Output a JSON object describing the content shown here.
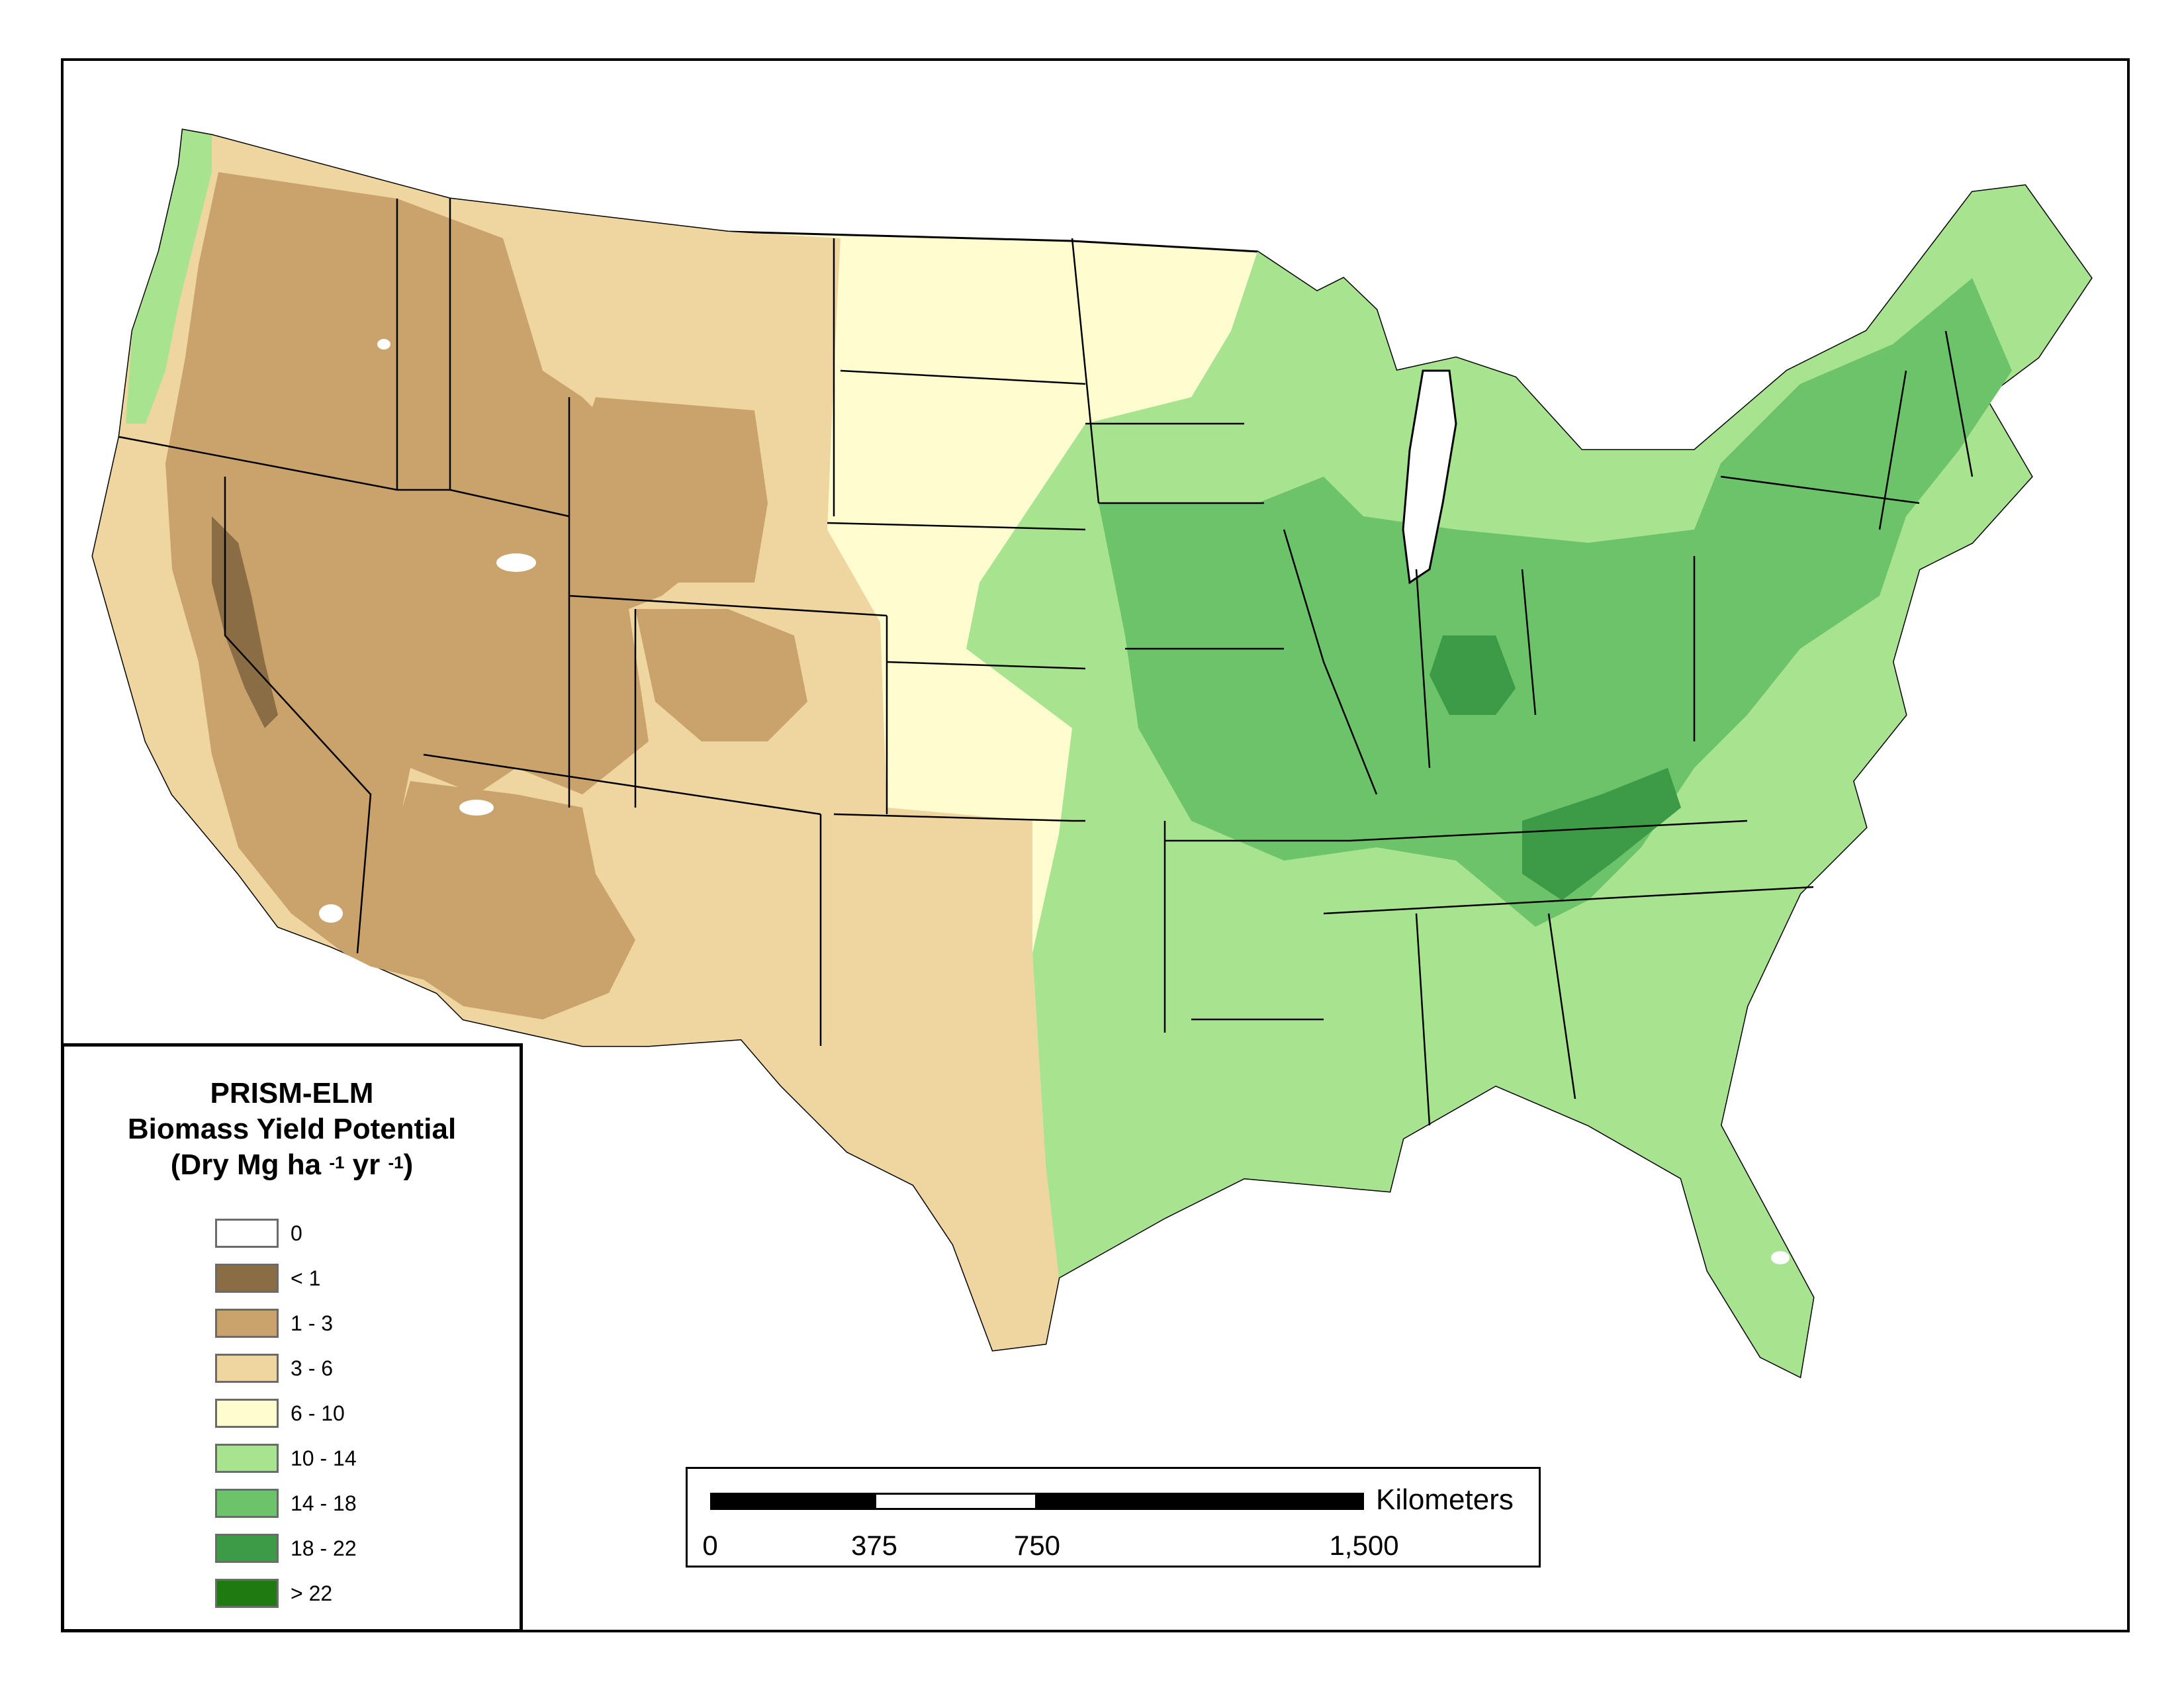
{
  "legend": {
    "title_line1": "PRISM-ELM",
    "title_line2": "Biomass Yield Potential",
    "title_line3_pre": "(Dry Mg ha",
    "title_line3_sup1": "-1",
    "title_line3_mid": " yr",
    "title_line3_sup2": "-1",
    "title_line3_post": ")",
    "classes": [
      {
        "label": "0",
        "color": "#ffffff"
      },
      {
        "label": "< 1",
        "color": "#8b6d45"
      },
      {
        "label": "1 - 3",
        "color": "#c9a26c"
      },
      {
        "label": "3 - 6",
        "color": "#efd6a0"
      },
      {
        "label": "6 - 10",
        "color": "#fffdd0"
      },
      {
        "label": "10 - 14",
        "color": "#a8e390"
      },
      {
        "label": "14 - 18",
        "color": "#6cc36a"
      },
      {
        "label": "18 - 22",
        "color": "#3d9a46"
      },
      {
        "label": "> 22",
        "color": "#1f7a12"
      }
    ]
  },
  "scale_bar": {
    "unit": "Kilometers",
    "ticks": [
      "0",
      "375",
      "750",
      "1,500"
    ]
  },
  "map": {
    "regions": [
      {
        "name": "pacific-northwest-coast",
        "class": "10 - 14"
      },
      {
        "name": "great-basin",
        "class": "1 - 3"
      },
      {
        "name": "sierra-nevada",
        "class": "< 1"
      },
      {
        "name": "northern-rockies-plains",
        "class": "3 - 6"
      },
      {
        "name": "wyoming-basin",
        "class": "1 - 3"
      },
      {
        "name": "southwest-desert",
        "class": "1 - 3"
      },
      {
        "name": "southern-high-plains",
        "class": "3 - 6"
      },
      {
        "name": "great-plains",
        "class": "6 - 10"
      },
      {
        "name": "eastern-woodlands",
        "class": "10 - 14"
      },
      {
        "name": "corn-belt-and-appalachia",
        "class": "14 - 18"
      },
      {
        "name": "ohio-valley-core",
        "class": "18 - 22"
      }
    ]
  }
}
